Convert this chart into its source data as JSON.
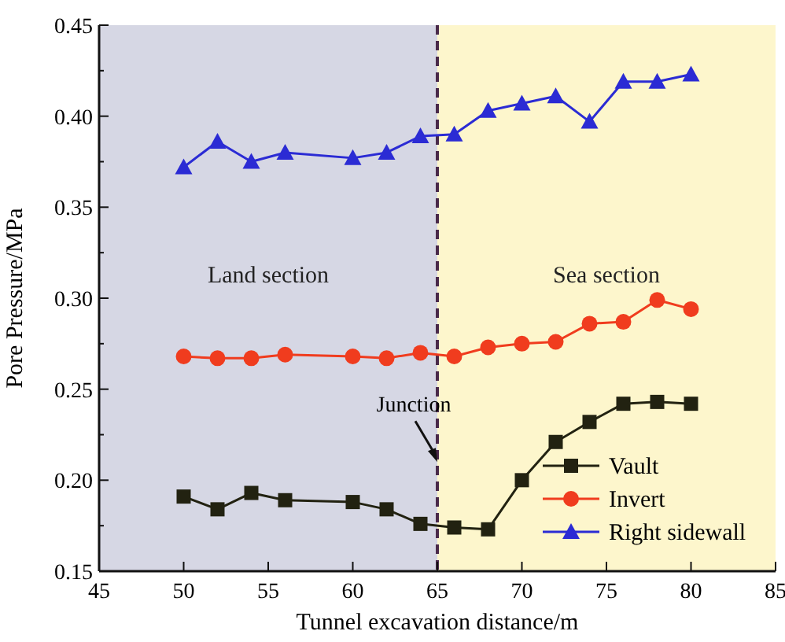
{
  "chart_data": {
    "type": "line",
    "xlabel": "Tunnel excavation distance/m",
    "ylabel": "Pore Pressure/MPa",
    "xlim": [
      45,
      85
    ],
    "xticks": [
      45,
      50,
      55,
      60,
      65,
      70,
      75,
      80,
      85
    ],
    "ylim": [
      0.15,
      0.45
    ],
    "yticks": [
      {
        "value": 0.15,
        "label": "0.15"
      },
      {
        "value": 0.175,
        "label": null
      },
      {
        "value": 0.2,
        "label": "0.20"
      },
      {
        "value": 0.225,
        "label": null
      },
      {
        "value": 0.25,
        "label": "0.25"
      },
      {
        "value": 0.275,
        "label": null
      },
      {
        "value": 0.3,
        "label": "0.30"
      },
      {
        "value": 0.325,
        "label": null
      },
      {
        "value": 0.35,
        "label": "0.35"
      },
      {
        "value": 0.375,
        "label": null
      },
      {
        "value": 0.4,
        "label": "0.40"
      },
      {
        "value": 0.425,
        "label": null
      },
      {
        "value": 0.45,
        "label": "0.45"
      }
    ],
    "x": [
      50,
      52,
      54,
      56,
      60,
      62,
      64,
      66,
      68,
      70,
      72,
      74,
      76,
      78,
      80
    ],
    "series": [
      {
        "name": "Vault",
        "color": "#222211",
        "marker": "square",
        "values": [
          0.191,
          0.184,
          0.193,
          0.189,
          0.188,
          0.184,
          0.176,
          0.174,
          0.173,
          0.2,
          0.221,
          0.232,
          0.242,
          0.243,
          0.242
        ]
      },
      {
        "name": "Invert",
        "color": "#f03c1e",
        "marker": "circle",
        "values": [
          0.268,
          0.267,
          0.267,
          0.269,
          0.268,
          0.267,
          0.27,
          0.268,
          0.273,
          0.275,
          0.276,
          0.286,
          0.287,
          0.299,
          0.294
        ]
      },
      {
        "name": "Right sidewall",
        "color": "#2b2bd4",
        "marker": "triangle",
        "values": [
          0.372,
          0.386,
          0.375,
          0.38,
          0.377,
          0.38,
          0.389,
          0.39,
          0.403,
          0.407,
          0.411,
          0.397,
          0.419,
          0.419,
          0.423
        ]
      }
    ],
    "bands": [
      {
        "axis": "x",
        "from": 45,
        "to": 65,
        "label": "Land section",
        "color": "#d6d7e4"
      },
      {
        "axis": "x",
        "from": 65,
        "to": 85,
        "label": "Sea section",
        "color": "#fdf6cc"
      }
    ],
    "ref_lines": [
      {
        "axis": "x",
        "value": 65,
        "color": "#4a2a4a",
        "line_style": "dashed"
      }
    ],
    "annotations": [
      {
        "text": "Junction",
        "x": 65,
        "y": 0.21
      }
    ],
    "legend": "bottom right",
    "grid": false
  }
}
